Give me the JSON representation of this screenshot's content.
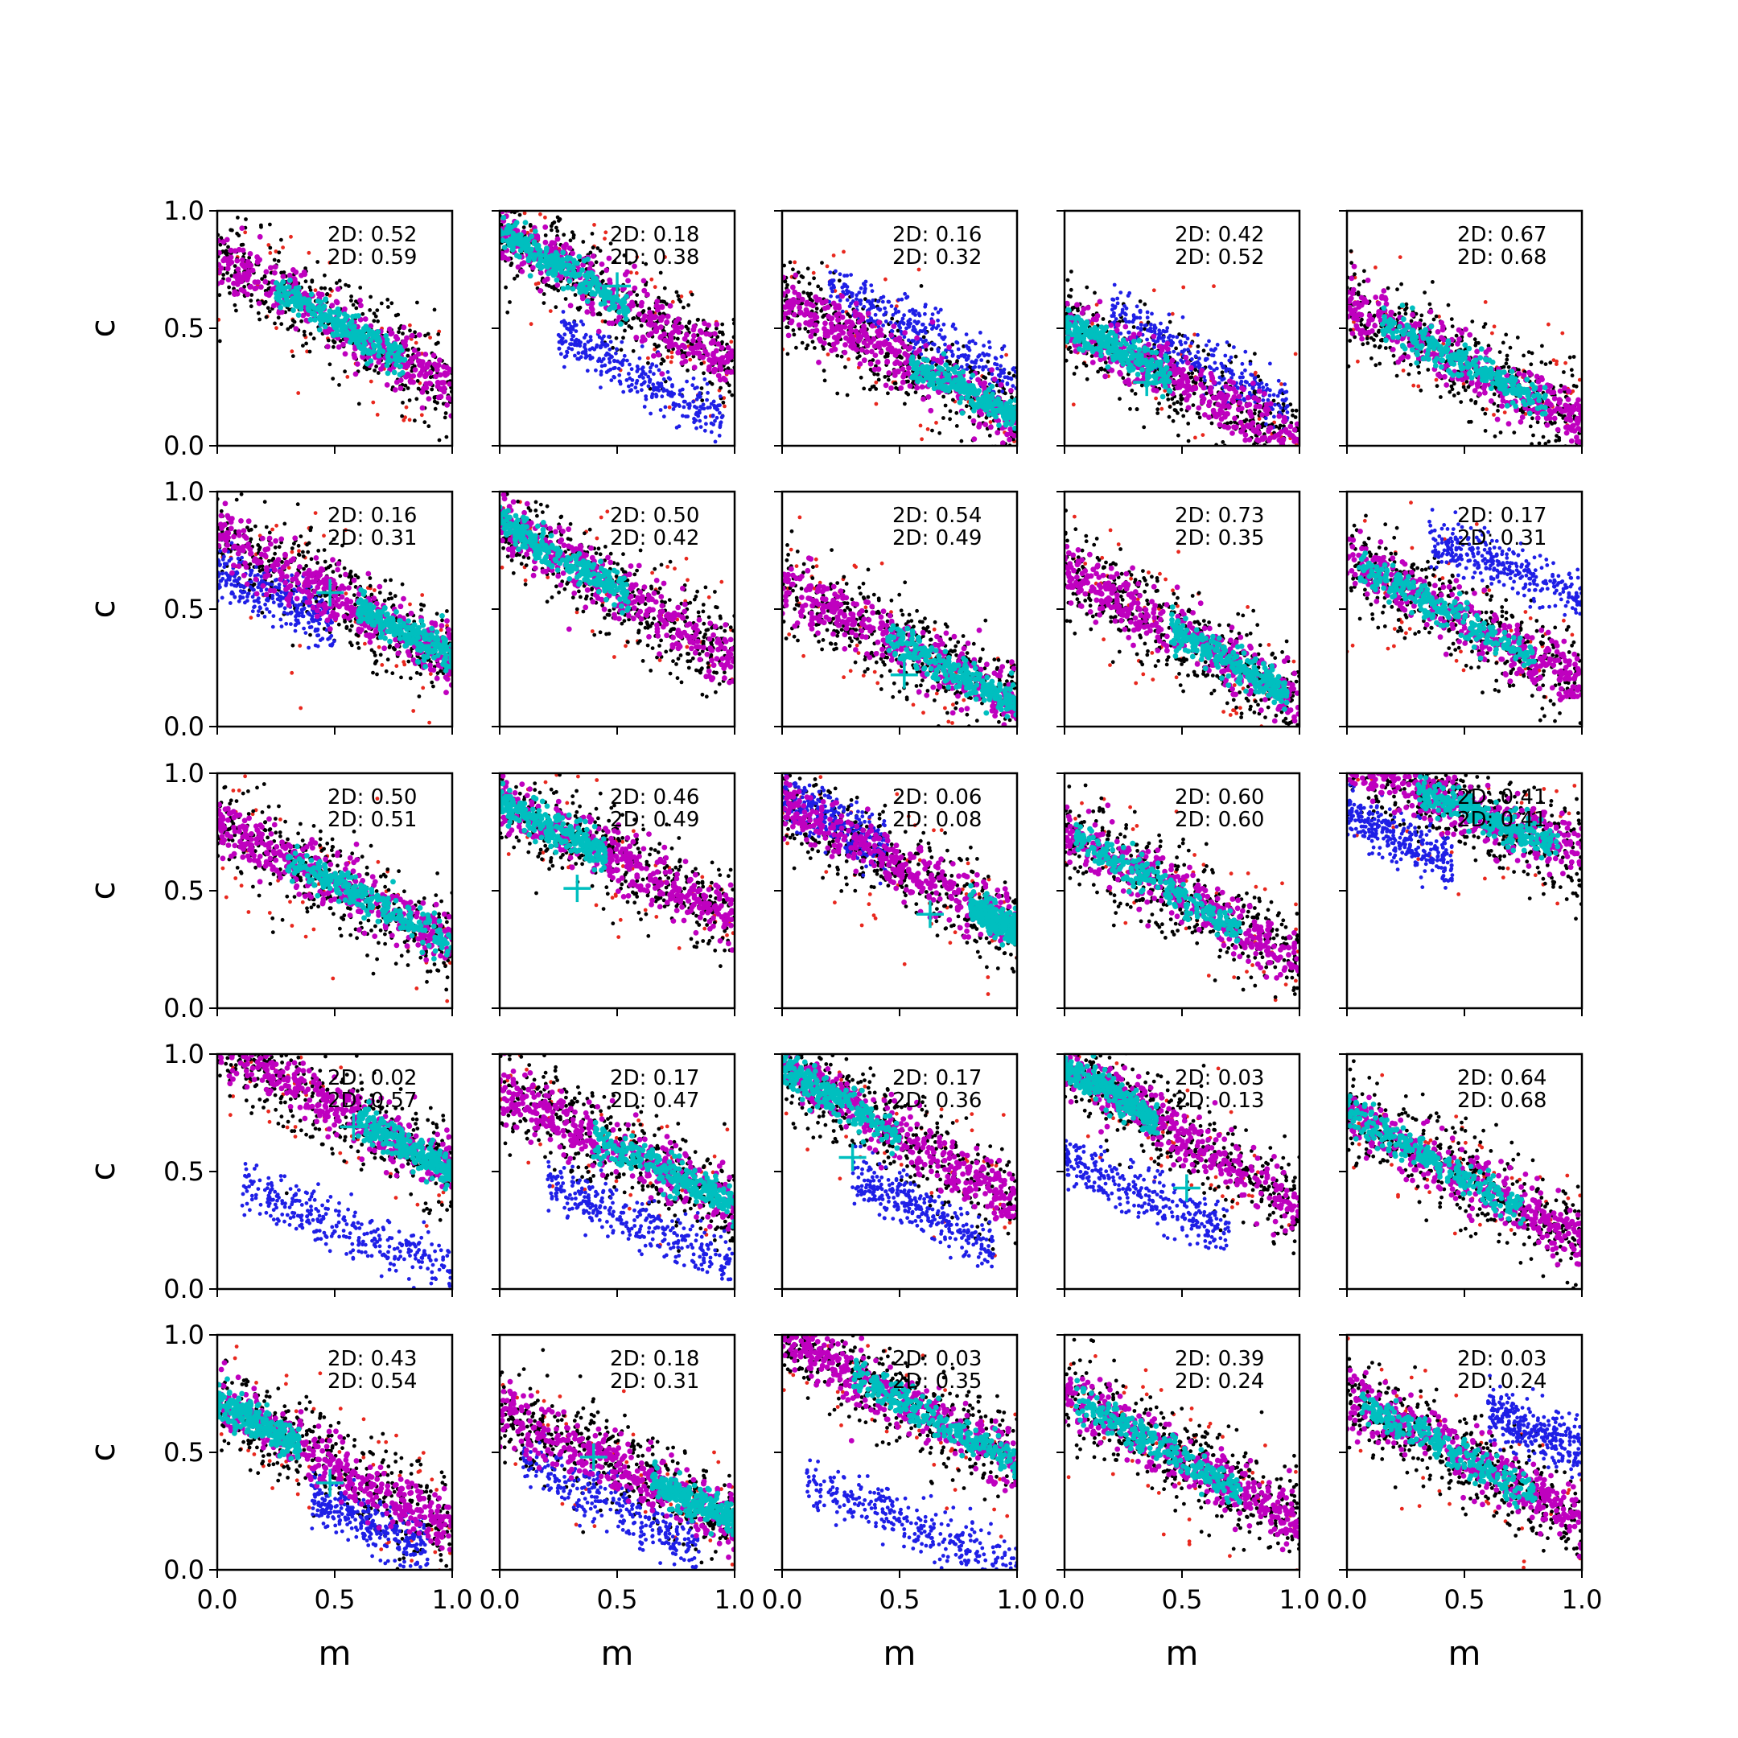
{
  "chart_data": {
    "type": "scatter",
    "rows": 5,
    "cols": 5,
    "xlabel": "m",
    "ylabel": "c",
    "xlim": [
      0,
      1
    ],
    "ylim": [
      0,
      1
    ],
    "xticks": [
      0,
      0.5,
      1
    ],
    "yticks": [
      0,
      0.5,
      1
    ],
    "xtick_labels": [
      "0.0",
      "0.5",
      "1.0"
    ],
    "ytick_labels": [
      "0.0",
      "0.5",
      "1.0"
    ],
    "colors": {
      "outer": "#000000",
      "outlier": "#e8281e",
      "alt": "#1f1fe6",
      "mid": "#bf00bf",
      "core": "#00bfbf",
      "marker": "#00bfbf"
    },
    "panels": [
      {
        "line1": "2D: 0.52",
        "line2": "2D: 0.59",
        "intercept": 0.8,
        "slope": -0.55,
        "core": [
          0.25,
          0.8
        ],
        "marker": null,
        "blue": null
      },
      {
        "line1": "2D: 0.18",
        "line2": "2D: 0.38",
        "intercept": 0.92,
        "slope": -0.6,
        "core": [
          0.0,
          0.55
        ],
        "marker": [
          0.5,
          0.68
        ],
        "blue": {
          "x": [
            0.25,
            0.95
          ],
          "intercept": 0.62,
          "slope": -0.55
        }
      },
      {
        "line1": "2D: 0.16",
        "line2": "2D: 0.32",
        "intercept": 0.62,
        "slope": -0.5,
        "core": [
          0.55,
          1.0
        ],
        "marker": null,
        "blue": {
          "x": [
            0.2,
            1.0
          ],
          "intercept": 0.78,
          "slope": -0.5
        }
      },
      {
        "line1": "2D: 0.42",
        "line2": "2D: 0.52",
        "intercept": 0.52,
        "slope": -0.5,
        "core": [
          0.0,
          0.45
        ],
        "marker": [
          0.35,
          0.27
        ],
        "blue": {
          "x": [
            0.2,
            0.95
          ],
          "intercept": 0.68,
          "slope": -0.55
        }
      },
      {
        "line1": "2D: 0.67",
        "line2": "2D: 0.68",
        "intercept": 0.6,
        "slope": -0.5,
        "core": [
          0.15,
          0.85
        ],
        "marker": null,
        "blue": null
      },
      {
        "line1": "2D: 0.16",
        "line2": "2D: 0.31",
        "intercept": 0.8,
        "slope": -0.5,
        "core": [
          0.6,
          1.0
        ],
        "marker": [
          0.48,
          0.57
        ],
        "blue": {
          "x": [
            0.0,
            0.5
          ],
          "intercept": 0.66,
          "slope": -0.45
        }
      },
      {
        "line1": "2D: 0.50",
        "line2": "2D: 0.42",
        "intercept": 0.88,
        "slope": -0.6,
        "core": [
          0.0,
          0.55
        ],
        "marker": null,
        "blue": null
      },
      {
        "line1": "2D: 0.54",
        "line2": "2D: 0.49",
        "intercept": 0.6,
        "slope": -0.5,
        "core": [
          0.45,
          1.0
        ],
        "marker": [
          0.52,
          0.22
        ],
        "blue": null
      },
      {
        "line1": "2D: 0.73",
        "line2": "2D: 0.35",
        "intercept": 0.68,
        "slope": -0.58,
        "core": [
          0.45,
          0.95
        ],
        "marker": null,
        "blue": null
      },
      {
        "line1": "2D: 0.17",
        "line2": "2D: 0.31",
        "intercept": 0.72,
        "slope": -0.55,
        "core": [
          0.05,
          0.8
        ],
        "marker": null,
        "blue": {
          "x": [
            0.35,
            1.0
          ],
          "intercept": 0.95,
          "slope": -0.4
        }
      },
      {
        "line1": "2D: 0.50",
        "line2": "2D: 0.51",
        "intercept": 0.78,
        "slope": -0.5,
        "core": [
          0.3,
          1.0
        ],
        "marker": null,
        "blue": null
      },
      {
        "line1": "2D: 0.46",
        "line2": "2D: 0.49",
        "intercept": 0.88,
        "slope": -0.5,
        "core": [
          0.0,
          0.45
        ],
        "marker": [
          0.33,
          0.51
        ],
        "blue": null
      },
      {
        "line1": "2D: 0.06",
        "line2": "2D: 0.08",
        "intercept": 0.88,
        "slope": -0.55,
        "core": [
          0.8,
          1.0
        ],
        "marker": [
          0.63,
          0.4
        ],
        "blue": {
          "x": [
            0.0,
            0.45
          ],
          "intercept": 0.9,
          "slope": -0.5
        }
      },
      {
        "line1": "2D: 0.60",
        "line2": "2D: 0.60",
        "intercept": 0.75,
        "slope": -0.55,
        "core": [
          0.05,
          0.75
        ],
        "marker": null,
        "blue": null
      },
      {
        "line1": "2D: 0.41",
        "line2": "2D: 0.41",
        "intercept": 1.05,
        "slope": -0.4,
        "core": [
          0.3,
          0.9
        ],
        "marker": null,
        "blue": {
          "x": [
            0.0,
            0.45
          ],
          "intercept": 0.82,
          "slope": -0.45
        }
      },
      {
        "line1": "2D: 0.02",
        "line2": "2D: 0.57",
        "intercept": 1.05,
        "slope": -0.55,
        "core": [
          0.6,
          1.0
        ],
        "marker": [
          0.58,
          0.69
        ],
        "blue": {
          "x": [
            0.1,
            1.0
          ],
          "intercept": 0.48,
          "slope": -0.4
        }
      },
      {
        "line1": "2D: 0.17",
        "line2": "2D: 0.47",
        "intercept": 0.85,
        "slope": -0.5,
        "core": [
          0.4,
          1.0
        ],
        "marker": null,
        "blue": {
          "x": [
            0.2,
            1.0
          ],
          "intercept": 0.55,
          "slope": -0.45
        }
      },
      {
        "line1": "2D: 0.17",
        "line2": "2D: 0.36",
        "intercept": 0.95,
        "slope": -0.6,
        "core": [
          0.0,
          0.5
        ],
        "marker": [
          0.3,
          0.56
        ],
        "blue": {
          "x": [
            0.3,
            0.9
          ],
          "intercept": 0.66,
          "slope": -0.55
        }
      },
      {
        "line1": "2D: 0.03",
        "line2": "2D: 0.13",
        "intercept": 0.95,
        "slope": -0.6,
        "core": [
          0.0,
          0.4
        ],
        "marker": [
          0.52,
          0.43
        ],
        "blue": {
          "x": [
            0.0,
            0.7
          ],
          "intercept": 0.55,
          "slope": -0.45
        }
      },
      {
        "line1": "2D: 0.64",
        "line2": "2D: 0.68",
        "intercept": 0.75,
        "slope": -0.55,
        "core": [
          0.0,
          0.75
        ],
        "marker": null,
        "blue": null
      },
      {
        "line1": "2D: 0.43",
        "line2": "2D: 0.54",
        "intercept": 0.72,
        "slope": -0.55,
        "core": [
          0.0,
          0.35
        ],
        "marker": [
          0.48,
          0.37
        ],
        "blue": {
          "x": [
            0.4,
            0.9
          ],
          "intercept": 0.52,
          "slope": -0.5
        }
      },
      {
        "line1": "2D: 0.18",
        "line2": "2D: 0.31",
        "intercept": 0.66,
        "slope": -0.45,
        "core": [
          0.65,
          1.0
        ],
        "marker": [
          0.4,
          0.48
        ],
        "blue": {
          "x": [
            0.1,
            0.85
          ],
          "intercept": 0.52,
          "slope": -0.5
        }
      },
      {
        "line1": "2D: 0.03",
        "line2": "2D: 0.35",
        "intercept": 1.0,
        "slope": -0.55,
        "core": [
          0.3,
          1.0
        ],
        "marker": null,
        "blue": {
          "x": [
            0.1,
            1.0
          ],
          "intercept": 0.42,
          "slope": -0.4
        }
      },
      {
        "line1": "2D: 0.39",
        "line2": "2D: 0.24",
        "intercept": 0.75,
        "slope": -0.55,
        "core": [
          0.05,
          0.75
        ],
        "marker": null,
        "blue": null
      },
      {
        "line1": "2D: 0.03",
        "line2": "2D: 0.24",
        "intercept": 0.75,
        "slope": -0.55,
        "core": [
          0.05,
          0.8
        ],
        "marker": null,
        "blue": {
          "x": [
            0.6,
            1.0
          ],
          "intercept": 0.95,
          "slope": -0.45
        }
      }
    ]
  }
}
